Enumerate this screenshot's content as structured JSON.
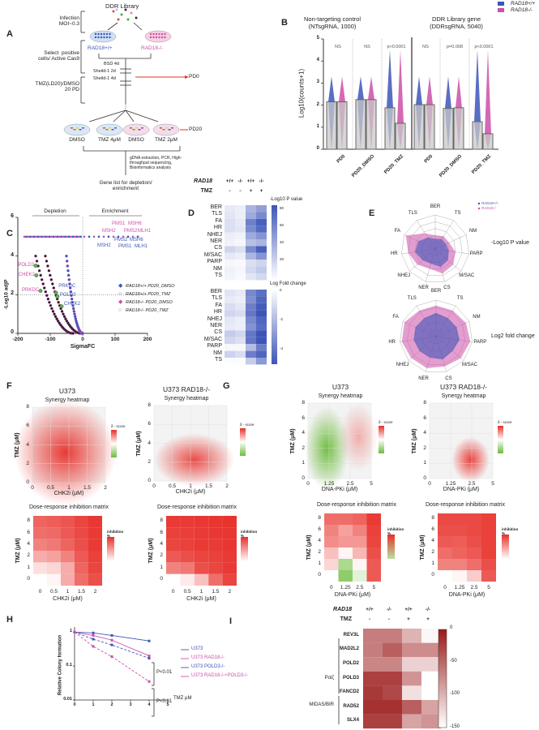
{
  "colors": {
    "blue": "#3d55b8",
    "pink": "#cc4fa8",
    "red": "#e8302a",
    "green": "#6dbb3c",
    "darkred": "#9b1a1a"
  },
  "A": {
    "label": "A",
    "library": "DDR Library",
    "infection": "Infection\nMOI~0.3",
    "wt": "RAD18+/+",
    "ko": "RAD18-/-",
    "select": "Select  positive\ncells/ Active Cas9",
    "steps": [
      "BSD 4d",
      "Sheild-1 2d",
      "Sheild-1 4d"
    ],
    "pd0": "PD0",
    "tmz": "TMZ(LD20)/DMSO\n20 PD",
    "dishes": [
      "DMSO",
      "TMZ 4μM",
      "DMSO",
      "TMZ 2μM"
    ],
    "pd20": "PD20",
    "seq": "gDNA extraction, PCR, High-\nthroughput sequencing,\nBioinformatics analysis",
    "genelist": "Gene list for depletion/\nenrichment"
  },
  "B": {
    "label": "B",
    "title1": "Non-targeting control\n(NTsgRNA, 1000)",
    "title2": "DDR Library gene\n(DDRsgRNA, 5040)",
    "legend": [
      "RAD18+/+",
      "RAD18-/-"
    ],
    "chart_data": {
      "type": "bar",
      "ylabel": "Log10(counts+1)",
      "ylim": [
        0,
        5
      ],
      "yticks": [
        "0",
        "1",
        "2",
        "3",
        "4",
        "5"
      ],
      "categories": [
        "PD0",
        "PD20_DMSO",
        "PD20_TMZ",
        "PD0",
        "PD20_DMSO",
        "PD20_TMZ"
      ],
      "series": [
        {
          "name": "RAD18+/+",
          "values": [
            2.15,
            2.25,
            1.88,
            2.02,
            1.85,
            1.25
          ]
        },
        {
          "name": "RAD18-/-",
          "values": [
            2.15,
            2.25,
            1.18,
            2.02,
            1.88,
            0.7
          ]
        }
      ],
      "annotations": [
        "NS",
        "NS",
        "p<0.0001",
        "NS",
        "p=0.008",
        "p<0.0001"
      ]
    }
  },
  "C": {
    "label": "C",
    "depletion": "Depletion",
    "enrichment": "Enrichment",
    "chart_data": {
      "type": "scatter",
      "xlabel": "SigmaFC",
      "ylabel": "-Log10 adjP",
      "xlim": [
        -200,
        200
      ],
      "ylim": [
        0,
        6
      ],
      "xticks": [
        "-200",
        "-100",
        "0",
        "100",
        "200"
      ],
      "yticks": [
        "0",
        "2",
        "4",
        "6"
      ],
      "legend": [
        "RAD18+/+ PD20_DMSO",
        "RAD18+/+ PD20_TMZ",
        "RAD18-/- PD20_DMSO",
        "RAD18-/- PD20_TMZ"
      ],
      "genes": [
        {
          "name": "MSH2",
          "x": 70,
          "y": 5,
          "series": "pink"
        },
        {
          "name": "PMS1",
          "x": 115,
          "y": 5,
          "series": "pink"
        },
        {
          "name": "MSH6",
          "x": 145,
          "y": 5,
          "series": "pink"
        },
        {
          "name": "PMS2",
          "x": 125,
          "y": 5,
          "series": "pink"
        },
        {
          "name": "MLH1",
          "x": 180,
          "y": 5,
          "series": "pink"
        },
        {
          "name": "MSH2",
          "x": 70,
          "y": 5,
          "series": "blue"
        },
        {
          "name": "PMS2",
          "x": 115,
          "y": 5,
          "series": "blue"
        },
        {
          "name": "PMS1",
          "x": 120,
          "y": 5,
          "series": "blue"
        },
        {
          "name": "MSH6",
          "x": 145,
          "y": 5,
          "series": "blue"
        },
        {
          "name": "MLH1",
          "x": 180,
          "y": 5,
          "series": "blue"
        },
        {
          "name": "POLD3",
          "x": -145,
          "y": 3.5,
          "series": "pink"
        },
        {
          "name": "CHEK2",
          "x": -143,
          "y": 3.0,
          "series": "pink"
        },
        {
          "name": "PRKDC",
          "x": -130,
          "y": 2.2,
          "series": "pink"
        },
        {
          "name": "PRKDC",
          "x": -82,
          "y": 2.1,
          "series": "blue"
        },
        {
          "name": "POLD3",
          "x": -78,
          "y": 1.9,
          "series": "blue"
        },
        {
          "name": "CHEK2",
          "x": -65,
          "y": 1.4,
          "series": "blue"
        }
      ]
    }
  },
  "D": {
    "label": "D",
    "rad18": "RAD18",
    "tmz": "TMZ",
    "genotypes": [
      "+/+",
      "-/-",
      "+/+",
      "-/-"
    ],
    "treat": [
      "-",
      "-",
      "+",
      "+"
    ],
    "rows": [
      "BER",
      "TLS",
      "FA",
      "HR",
      "NHEJ",
      "NER",
      "CS",
      "M/SAC",
      "PARP",
      "NM",
      "TS"
    ],
    "bar1": {
      "title": "-Log10 P value",
      "ticks": [
        "80",
        "60",
        "40",
        "20"
      ]
    },
    "bar2": {
      "title": "Log Fold change",
      "ticks": [
        "0",
        "-2",
        "-4"
      ]
    },
    "pvals": [
      [
        10,
        8,
        35,
        45
      ],
      [
        12,
        8,
        40,
        55
      ],
      [
        15,
        10,
        60,
        75
      ],
      [
        15,
        12,
        55,
        70
      ],
      [
        8,
        6,
        40,
        50
      ],
      [
        6,
        4,
        30,
        35
      ],
      [
        20,
        15,
        55,
        75
      ],
      [
        10,
        8,
        35,
        50
      ],
      [
        4,
        3,
        15,
        20
      ],
      [
        6,
        4,
        18,
        25
      ],
      [
        5,
        3,
        12,
        18
      ]
    ],
    "lfc": [
      [
        -0.8,
        -0.6,
        -3.5,
        -4.2
      ],
      [
        -0.6,
        -0.5,
        -3.3,
        -4.5
      ],
      [
        -1,
        -0.7,
        -3.8,
        -4.8
      ],
      [
        -1.2,
        -1,
        -4,
        -5
      ],
      [
        -0.7,
        -0.5,
        -3.5,
        -4.5
      ],
      [
        -0.6,
        -0.5,
        -3.2,
        -4.3
      ],
      [
        -1.5,
        -1.2,
        -4,
        -5
      ],
      [
        -1.2,
        -0.9,
        -4,
        -5
      ],
      [
        -0.2,
        -0.2,
        -2,
        -3.8
      ],
      [
        -1.3,
        -1,
        -3.8,
        -4.5
      ],
      [
        -0.1,
        -0.1,
        -1.5,
        -3
      ]
    ]
  },
  "E": {
    "label": "E",
    "axes": [
      "BER",
      "TS",
      "NM",
      "PARP",
      "M/SAC",
      "CS",
      "NER",
      "NHEJ",
      "HR",
      "FA",
      "TLS"
    ],
    "legend": [
      "RAD18+/+",
      "RAD18-/-"
    ],
    "title1": "-Log10 P value",
    "title2": "Log2 fold change",
    "pval": {
      "wt": [
        0.3,
        0.35,
        0.35,
        0.4,
        0.5,
        0.55,
        0.45,
        0.5,
        0.6,
        0.55,
        0.4
      ],
      "ko": [
        0.4,
        0.45,
        0.45,
        0.6,
        0.7,
        0.75,
        0.6,
        0.7,
        0.8,
        0.95,
        0.55
      ]
    },
    "lfc": {
      "wt": [
        0.65,
        0.6,
        0.62,
        0.65,
        0.6,
        0.65,
        0.6,
        0.6,
        0.62,
        0.62,
        0.6
      ],
      "ko": [
        0.85,
        0.85,
        0.9,
        0.95,
        0.9,
        0.85,
        0.9,
        0.9,
        0.95,
        0.95,
        0.85
      ]
    }
  },
  "F": {
    "label": "F",
    "title1": "U373",
    "title2": "U373 RAD18-/-",
    "synergy": "Synergy heatmap",
    "dose": "Dose-response inhibition matrix",
    "xlabel": "CHK2i (μM)",
    "ylabel": "TMZ (μM)",
    "xticks": [
      "0",
      "0.5",
      "1",
      "1.5",
      "2"
    ],
    "yticks": [
      "0",
      "2",
      "4",
      "6",
      "8"
    ],
    "dticks": [
      "0",
      "1",
      "2",
      "4",
      "6",
      "8"
    ],
    "score": "δ - score",
    "inh": "inhibition\n%",
    "m1": [
      [
        0,
        5,
        40,
        70,
        85
      ],
      [
        15,
        20,
        40,
        75,
        90
      ],
      [
        40,
        45,
        60,
        80,
        92
      ],
      [
        60,
        65,
        75,
        85,
        95
      ],
      [
        70,
        72,
        80,
        88,
        95
      ],
      [
        75,
        78,
        82,
        90,
        96
      ]
    ],
    "m2": [
      [
        0,
        10,
        30,
        70,
        90
      ],
      [
        60,
        65,
        85,
        90,
        95
      ],
      [
        80,
        85,
        90,
        92,
        95
      ],
      [
        90,
        92,
        95,
        95,
        97
      ],
      [
        92,
        93,
        95,
        96,
        97
      ],
      [
        95,
        95,
        96,
        97,
        98
      ]
    ]
  },
  "G": {
    "label": "G",
    "title1": "U373",
    "title2": "U373 RAD18-/-",
    "synergy": "Synergy heatmap",
    "dose": "Dose-response inhibition matrix",
    "xlabel": "DNA-PKi (μM)",
    "ylabel": "TMZ (μM)",
    "xticks": [
      "0",
      "1.25",
      "2.5",
      "5"
    ],
    "yticks": [
      "0",
      "1",
      "2",
      "4",
      "6",
      "8"
    ],
    "score": "δ - score",
    "inh": "inhibition\n%",
    "m1": [
      [
        0,
        -40,
        -10,
        80
      ],
      [
        20,
        -30,
        5,
        80
      ],
      [
        30,
        5,
        35,
        85
      ],
      [
        55,
        50,
        50,
        90
      ],
      [
        60,
        45,
        60,
        92
      ],
      [
        70,
        70,
        75,
        95
      ]
    ],
    "m2": [
      [
        0,
        5,
        25,
        80
      ],
      [
        60,
        60,
        70,
        85
      ],
      [
        70,
        75,
        80,
        92
      ],
      [
        80,
        78,
        85,
        92
      ],
      [
        85,
        85,
        88,
        92
      ],
      [
        88,
        88,
        88,
        92
      ]
    ]
  },
  "H": {
    "label": "H",
    "chart_data": {
      "type": "line",
      "ylabel": "Relative Colony formation",
      "xlabel": "TMZ μM",
      "x": [
        0,
        1,
        2,
        4
      ],
      "xticks": [
        "0",
        "1",
        "2",
        "3",
        "4",
        "5"
      ],
      "yticks": [
        "1",
        "0.1",
        "0.01"
      ],
      "ylim": [
        0.01,
        1.2
      ],
      "series": [
        {
          "name": "U373",
          "values": [
            1,
            0.95,
            0.8,
            0.55
          ]
        },
        {
          "name": "U373 RAD18-/-",
          "values": [
            1,
            0.8,
            0.58,
            0.2
          ]
        },
        {
          "name": "U373 POLD3-/-",
          "values": [
            1,
            0.62,
            0.42,
            0.17
          ]
        },
        {
          "name": "U373 RAD18-/-+POLD3-/-",
          "values": [
            1,
            0.38,
            0.19,
            0.035
          ]
        }
      ],
      "pvals": [
        "P<0.01",
        "P<0.01"
      ]
    }
  },
  "I": {
    "label": "I",
    "rad18": "RAD18",
    "tmz": "TMZ",
    "genotypes": [
      "+/+",
      "-/-",
      "+/+",
      "-/-"
    ],
    "treat": [
      "-",
      "-",
      "+",
      "+"
    ],
    "rows": [
      "REV3L",
      "MAD2L2",
      "POLD2",
      "POLD3",
      "FANCD2",
      "RAD52",
      "SLX4"
    ],
    "groups": [
      "Polζ",
      "MIDAS/BIR"
    ],
    "ticks": [
      "0",
      "-50",
      "-100",
      "-150"
    ],
    "values": [
      [
        -65,
        -65,
        -100,
        -145
      ],
      [
        -65,
        -45,
        -75,
        -75
      ],
      [
        -70,
        -70,
        -120,
        -120
      ],
      [
        -25,
        -25,
        -80,
        -150
      ],
      [
        -20,
        -30,
        -130,
        -150
      ],
      [
        -15,
        -15,
        -45,
        -90
      ],
      [
        -25,
        -25,
        -90,
        -80
      ]
    ]
  }
}
